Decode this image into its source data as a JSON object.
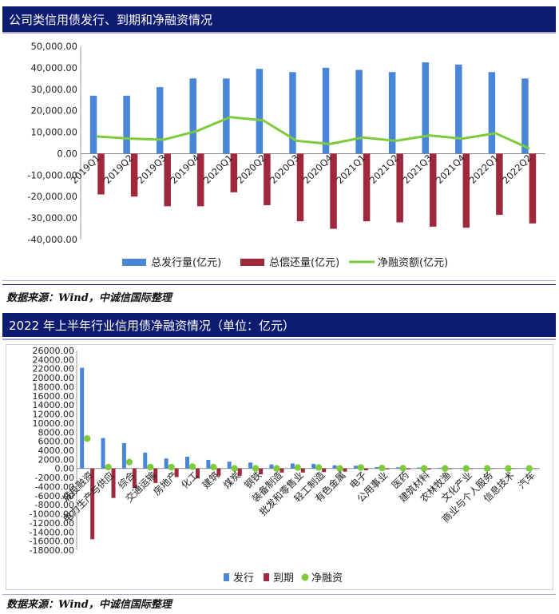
{
  "chart1": {
    "header": "公司类信用债发行、到期和净融资情况",
    "source": "数据来源：Wind，中诚信国际整理",
    "chart_data": {
      "type": "bar",
      "categories": [
        "2019Q1",
        "2019Q2",
        "2019Q3",
        "2019Q4",
        "2020Q1",
        "2020Q2",
        "2020Q3",
        "2020Q4",
        "2021Q1",
        "2021Q2",
        "2021Q3",
        "2021Q4",
        "2022Q1",
        "2022Q2"
      ],
      "series": [
        {
          "name": "总发行量(亿元)",
          "kind": "bar",
          "color": "#4a86d8",
          "values": [
            27000,
            27000,
            31000,
            35000,
            35000,
            39500,
            38000,
            40000,
            39000,
            38000,
            42500,
            41500,
            38000,
            35000
          ]
        },
        {
          "name": "总偿还量(亿元)",
          "kind": "bar",
          "color": "#a0283c",
          "values": [
            -19000,
            -20000,
            -24500,
            -24500,
            -18000,
            -24000,
            -31500,
            -35000,
            -31500,
            -32000,
            -34000,
            -34500,
            -28500,
            -32500
          ]
        },
        {
          "name": "净融资额(亿元)",
          "kind": "line",
          "color": "#7dcb3c",
          "values": [
            8000,
            7000,
            6500,
            10500,
            17000,
            15500,
            6000,
            4500,
            7500,
            6000,
            8500,
            7000,
            9500,
            2500
          ]
        }
      ],
      "ylim": [
        -40000,
        50000
      ],
      "yticks": [
        "50,000.00",
        "40,000.00",
        "30,000.00",
        "20,000.00",
        "10,000.00",
        "0.00",
        "-10,000.00",
        "-20,000.00",
        "-30,000.00",
        "-40,000.00"
      ],
      "grid": false,
      "legend": "bottom"
    }
  },
  "chart2": {
    "header": "2022 年上半年行业信用债净融资情况（单位：亿元）",
    "source": "数据来源：Wind，中诚信国际整理",
    "chart_data": {
      "type": "bar",
      "categories": [
        "城投融资",
        "电力生产与供应",
        "综合",
        "交通运输",
        "房地产",
        "化工",
        "建筑",
        "煤炭",
        "钢铁",
        "装备制造",
        "批发和零售业",
        "轻工制造",
        "有色金属",
        "电子",
        "公用事业",
        "医药",
        "建筑材料",
        "农林牧渔",
        "文化产业",
        "商业与个人服务",
        "信息技术",
        "汽车"
      ],
      "series": [
        {
          "name": "发行",
          "kind": "bar",
          "color": "#4a86d8",
          "values": [
            22200,
            6700,
            5600,
            3500,
            2200,
            2600,
            1900,
            1500,
            1300,
            900,
            1100,
            1000,
            700,
            600,
            300,
            250,
            200,
            150,
            100,
            80,
            60,
            50
          ]
        },
        {
          "name": "到期",
          "kind": "bar",
          "color": "#a0283c",
          "values": [
            -15600,
            -6500,
            -4300,
            -3200,
            -1900,
            -2200,
            -1600,
            -1600,
            -1300,
            -900,
            -900,
            -800,
            -700,
            -400,
            -200,
            -200,
            -200,
            -150,
            -100,
            -80,
            -60,
            -50
          ]
        },
        {
          "name": "净融资",
          "kind": "dot",
          "color": "#7dcb3c",
          "values": [
            6600,
            300,
            1400,
            300,
            300,
            400,
            300,
            0,
            0,
            0,
            200,
            200,
            0,
            200,
            100,
            50,
            0,
            0,
            0,
            0,
            0,
            0
          ]
        }
      ],
      "ylim": [
        -18000,
        26000
      ],
      "yticks": [
        "26000.00",
        "24000.00",
        "22000.00",
        "20000.00",
        "18000.00",
        "16000.00",
        "14000.00",
        "12000.00",
        "10000.00",
        "8000.00",
        "6000.00",
        "4000.00",
        "2000.00",
        "0.00",
        "-2000.00",
        "-4000.00",
        "-6000.00",
        "-8000.00",
        "-10000.00",
        "-12000.00",
        "-14000.00",
        "-16000.00",
        "-18000.00"
      ],
      "grid": false,
      "legend": "bottom"
    }
  }
}
